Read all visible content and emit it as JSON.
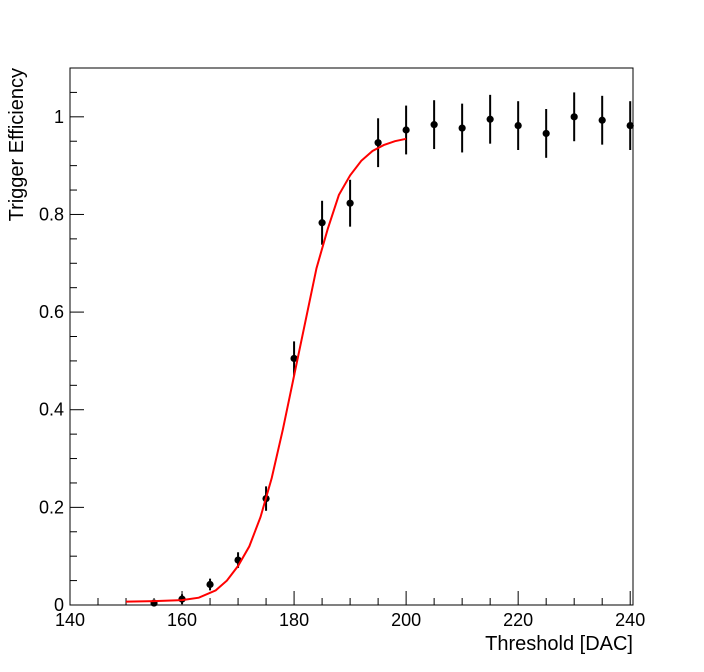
{
  "chart_data": {
    "type": "scatter",
    "title": "",
    "xlabel": "Threshold [DAC]",
    "ylabel": "Trigger Efficiency",
    "xlim": [
      140,
      240.5
    ],
    "ylim": [
      0,
      1.1
    ],
    "xticks": [
      140,
      160,
      180,
      200,
      220,
      240
    ],
    "xtick_labels": [
      "140",
      "160",
      "180",
      "200",
      "220",
      "240"
    ],
    "yticks": [
      0,
      0.2,
      0.4,
      0.6,
      0.8,
      1
    ],
    "ytick_labels": [
      "0",
      "0.2",
      "0.4",
      "0.6",
      "0.8",
      "1"
    ],
    "grid": false,
    "legend": "none",
    "series": [
      {
        "type": "scatter_errorbar",
        "color": "#000000",
        "points": [
          {
            "x": 155,
            "y": 0.004,
            "err": 0.006
          },
          {
            "x": 160,
            "y": 0.012,
            "err": 0.01
          },
          {
            "x": 165,
            "y": 0.042,
            "err": 0.012
          },
          {
            "x": 170,
            "y": 0.092,
            "err": 0.016
          },
          {
            "x": 175,
            "y": 0.218,
            "err": 0.025
          },
          {
            "x": 180,
            "y": 0.505,
            "err": 0.035
          },
          {
            "x": 185,
            "y": 0.783,
            "err": 0.045
          },
          {
            "x": 190,
            "y": 0.823,
            "err": 0.048
          },
          {
            "x": 195,
            "y": 0.947,
            "err": 0.05
          },
          {
            "x": 200,
            "y": 0.973,
            "err": 0.05
          },
          {
            "x": 205,
            "y": 0.984,
            "err": 0.05
          },
          {
            "x": 210,
            "y": 0.977,
            "err": 0.05
          },
          {
            "x": 215,
            "y": 0.995,
            "err": 0.05
          },
          {
            "x": 220,
            "y": 0.982,
            "err": 0.05
          },
          {
            "x": 225,
            "y": 0.966,
            "err": 0.05
          },
          {
            "x": 230,
            "y": 1.0,
            "err": 0.05
          },
          {
            "x": 235,
            "y": 0.993,
            "err": 0.05
          },
          {
            "x": 240,
            "y": 0.982,
            "err": 0.05
          }
        ]
      },
      {
        "type": "line",
        "color": "#ff0000",
        "x": [
          150,
          155,
          160,
          163,
          166,
          168,
          170,
          172,
          174,
          176,
          178,
          180,
          182,
          184,
          186,
          188,
          190,
          192,
          194,
          196,
          198,
          200
        ],
        "y": [
          0.007,
          0.008,
          0.01,
          0.015,
          0.03,
          0.05,
          0.08,
          0.12,
          0.18,
          0.26,
          0.36,
          0.47,
          0.58,
          0.69,
          0.77,
          0.84,
          0.88,
          0.91,
          0.93,
          0.942,
          0.95,
          0.955
        ]
      }
    ]
  }
}
